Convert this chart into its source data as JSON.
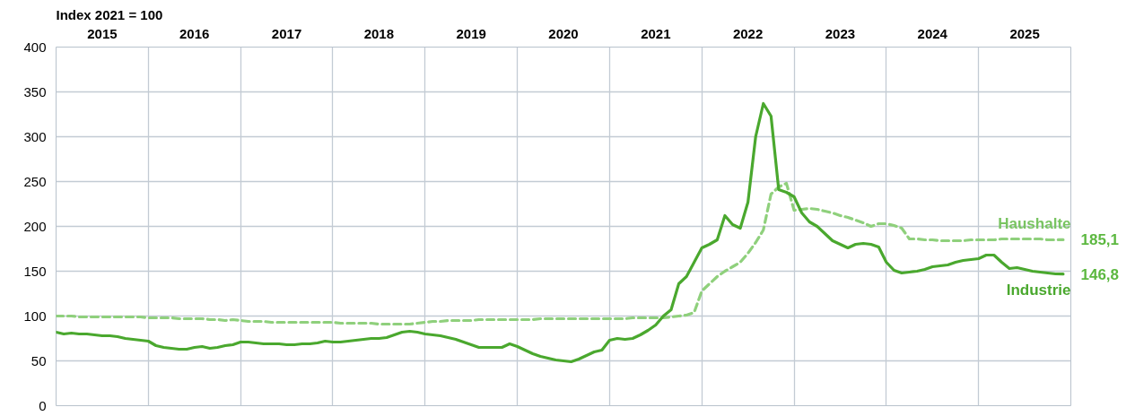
{
  "chart_data": {
    "type": "line",
    "title": "Index 2021 = 100",
    "x": [
      "2015-01",
      "2015-02",
      "2015-03",
      "2015-04",
      "2015-05",
      "2015-06",
      "2015-07",
      "2015-08",
      "2015-09",
      "2015-10",
      "2015-11",
      "2015-12",
      "2016-01",
      "2016-02",
      "2016-03",
      "2016-04",
      "2016-05",
      "2016-06",
      "2016-07",
      "2016-08",
      "2016-09",
      "2016-10",
      "2016-11",
      "2016-12",
      "2017-01",
      "2017-02",
      "2017-03",
      "2017-04",
      "2017-05",
      "2017-06",
      "2017-07",
      "2017-08",
      "2017-09",
      "2017-10",
      "2017-11",
      "2017-12",
      "2018-01",
      "2018-02",
      "2018-03",
      "2018-04",
      "2018-05",
      "2018-06",
      "2018-07",
      "2018-08",
      "2018-09",
      "2018-10",
      "2018-11",
      "2018-12",
      "2019-01",
      "2019-02",
      "2019-03",
      "2019-04",
      "2019-05",
      "2019-06",
      "2019-07",
      "2019-08",
      "2019-09",
      "2019-10",
      "2019-11",
      "2019-12",
      "2020-01",
      "2020-02",
      "2020-03",
      "2020-04",
      "2020-05",
      "2020-06",
      "2020-07",
      "2020-08",
      "2020-09",
      "2020-10",
      "2020-11",
      "2020-12",
      "2021-01",
      "2021-02",
      "2021-03",
      "2021-04",
      "2021-05",
      "2021-06",
      "2021-07",
      "2021-08",
      "2021-09",
      "2021-10",
      "2021-11",
      "2021-12",
      "2022-01",
      "2022-02",
      "2022-03",
      "2022-04",
      "2022-05",
      "2022-06",
      "2022-07",
      "2022-08",
      "2022-09",
      "2022-10",
      "2022-11",
      "2022-12",
      "2023-01",
      "2023-02",
      "2023-03",
      "2023-04",
      "2023-05",
      "2023-06",
      "2023-07",
      "2023-08",
      "2023-09",
      "2023-10",
      "2023-11",
      "2023-12",
      "2024-01",
      "2024-02",
      "2024-03",
      "2024-04",
      "2024-05",
      "2024-06",
      "2024-07",
      "2024-08",
      "2024-09",
      "2024-10",
      "2024-11",
      "2024-12",
      "2025-01",
      "2025-02",
      "2025-03",
      "2025-04",
      "2025-05",
      "2025-06",
      "2025-07",
      "2025-08",
      "2025-09",
      "2025-10",
      "2025-11",
      "2025-12"
    ],
    "series": [
      {
        "name": "Haushalte",
        "color": "#8fd07c",
        "line_style": "dashed",
        "values": [
          100,
          100,
          100,
          99,
          99,
          99,
          99,
          99,
          99,
          99,
          99,
          99,
          98,
          98,
          98,
          98,
          97,
          97,
          97,
          97,
          96,
          96,
          95,
          96,
          95,
          94,
          94,
          94,
          93,
          93,
          93,
          93,
          93,
          93,
          93,
          93,
          93,
          92,
          92,
          92,
          92,
          92,
          91,
          91,
          91,
          91,
          91,
          92,
          93,
          94,
          94,
          95,
          95,
          95,
          95,
          96,
          96,
          96,
          96,
          96,
          96,
          96,
          96,
          97,
          97,
          97,
          97,
          97,
          97,
          97,
          97,
          97,
          97,
          97,
          97,
          98,
          98,
          98,
          98,
          98,
          99,
          100,
          101,
          104,
          128,
          136,
          144,
          150,
          155,
          160,
          170,
          182,
          196,
          236,
          244,
          248,
          218,
          219,
          220,
          219,
          217,
          215,
          212,
          210,
          207,
          204,
          200,
          203,
          203,
          201,
          198,
          186,
          186,
          185,
          185,
          184,
          184,
          184,
          184,
          185,
          185,
          185,
          185,
          186,
          186,
          186,
          186,
          186,
          186,
          185,
          185,
          185.1
        ]
      },
      {
        "name": "Industrie",
        "color": "#4aa82e",
        "line_style": "solid",
        "values": [
          82,
          80,
          81,
          80,
          80,
          79,
          78,
          78,
          77,
          75,
          74,
          73,
          72,
          67,
          65,
          64,
          63,
          63,
          65,
          66,
          64,
          65,
          67,
          68,
          71,
          71,
          70,
          69,
          69,
          69,
          68,
          68,
          69,
          69,
          70,
          72,
          71,
          71,
          72,
          73,
          74,
          75,
          75,
          76,
          79,
          82,
          83,
          82,
          80,
          79,
          78,
          76,
          74,
          71,
          68,
          65,
          65,
          65,
          65,
          69,
          66,
          62,
          58,
          55,
          53,
          51,
          50,
          49,
          52,
          56,
          60,
          62,
          73,
          75,
          74,
          75,
          79,
          84,
          90,
          100,
          107,
          136,
          144,
          160,
          176,
          180,
          185,
          212,
          202,
          198,
          227,
          300,
          337,
          323,
          241,
          238,
          233,
          215,
          205,
          200,
          192,
          184,
          180,
          176,
          180,
          181,
          180,
          177,
          160,
          151,
          148,
          149,
          150,
          152,
          155,
          156,
          157,
          160,
          162,
          163,
          164,
          168,
          168,
          160,
          153,
          154,
          152,
          150,
          149,
          148,
          147,
          146.8
        ]
      }
    ],
    "xlim": [
      "2015-01",
      "2026-01"
    ],
    "xticks": [
      {
        "value": "2015-01",
        "label": null
      },
      {
        "value": "2015-07",
        "label": "2015"
      },
      {
        "value": "2016-01",
        "label": null
      },
      {
        "value": "2016-07",
        "label": "2016"
      },
      {
        "value": "2017-01",
        "label": null
      },
      {
        "value": "2017-07",
        "label": "2017"
      },
      {
        "value": "2018-01",
        "label": null
      },
      {
        "value": "2018-07",
        "label": "2018"
      },
      {
        "value": "2019-01",
        "label": null
      },
      {
        "value": "2019-07",
        "label": "2019"
      },
      {
        "value": "2020-01",
        "label": null
      },
      {
        "value": "2020-07",
        "label": "2020"
      },
      {
        "value": "2021-01",
        "label": null
      },
      {
        "value": "2021-07",
        "label": "2021"
      },
      {
        "value": "2022-01",
        "label": null
      },
      {
        "value": "2022-07",
        "label": "2022"
      },
      {
        "value": "2023-01",
        "label": null
      },
      {
        "value": "2023-07",
        "label": "2023"
      },
      {
        "value": "2024-01",
        "label": null
      },
      {
        "value": "2024-07",
        "label": "2024"
      },
      {
        "value": "2025-01",
        "label": null
      },
      {
        "value": "2025-07",
        "label": "2025"
      },
      {
        "value": "2026-01",
        "label": null
      }
    ],
    "ylim": [
      0,
      400
    ],
    "yticks": [
      0,
      50,
      100,
      150,
      200,
      250,
      300,
      350,
      400
    ],
    "grid": true,
    "annotations": [
      {
        "text": "185,1",
        "x": "2025-12",
        "y": 185.1
      },
      {
        "text": "146,8",
        "x": "2025-12",
        "y": 146.8
      }
    ]
  }
}
